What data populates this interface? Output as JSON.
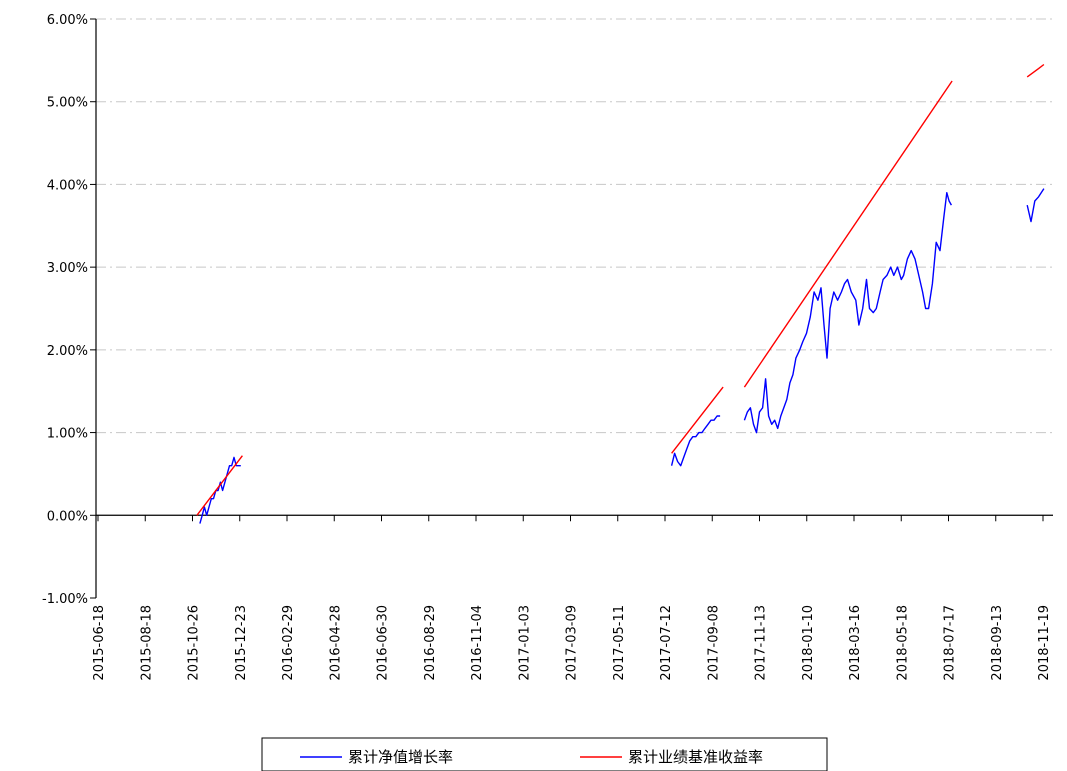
{
  "chart_data": {
    "type": "line",
    "y_axis": {
      "min": -0.01,
      "max": 0.06,
      "ticks": [
        {
          "value": 0.06,
          "label": "6.00%"
        },
        {
          "value": 0.05,
          "label": "5.00%"
        },
        {
          "value": 0.04,
          "label": "4.00%"
        },
        {
          "value": 0.03,
          "label": "3.00%"
        },
        {
          "value": 0.02,
          "label": "2.00%"
        },
        {
          "value": 0.01,
          "label": "1.00%"
        },
        {
          "value": 0.0,
          "label": "0.00%"
        },
        {
          "value": -0.01,
          "label": "-1.00%"
        }
      ],
      "gridlines": "dash-dot"
    },
    "x_axis": {
      "min": "2015-06-18",
      "max": "2018-12-01",
      "tick_labels": [
        "2015-06-18",
        "2015-08-18",
        "2015-10-26",
        "2015-12-23",
        "2016-02-29",
        "2016-04-28",
        "2016-06-30",
        "2016-08-29",
        "2016-11-04",
        "2017-01-03",
        "2017-03-09",
        "2017-05-11",
        "2017-07-12",
        "2017-09-08",
        "2017-11-13",
        "2018-01-10",
        "2018-03-16",
        "2018-05-18",
        "2018-07-17",
        "2018-09-13",
        "2018-11-19"
      ],
      "label_orientation": "vertical"
    },
    "legend": {
      "position": "bottom-center"
    },
    "series": [
      {
        "name": "累计净值增长率",
        "color": "#0000ff",
        "segments": [
          [
            [
              "2015-11-02",
              -0.001
            ],
            [
              "2015-11-05",
              0.0
            ],
            [
              "2015-11-08",
              0.001
            ],
            [
              "2015-11-11",
              0.0
            ],
            [
              "2015-11-14",
              0.001
            ],
            [
              "2015-11-17",
              0.002
            ],
            [
              "2015-11-20",
              0.002
            ],
            [
              "2015-11-23",
              0.003
            ],
            [
              "2015-11-26",
              0.003
            ],
            [
              "2015-11-29",
              0.004
            ],
            [
              "2015-12-02",
              0.003
            ],
            [
              "2015-12-05",
              0.004
            ],
            [
              "2015-12-08",
              0.005
            ],
            [
              "2015-12-11",
              0.006
            ],
            [
              "2015-12-14",
              0.006
            ],
            [
              "2015-12-17",
              0.007
            ],
            [
              "2015-12-20",
              0.006
            ],
            [
              "2015-12-23",
              0.006
            ],
            [
              "2015-12-26",
              0.006
            ]
          ],
          [
            [
              "2017-07-16",
              0.006
            ],
            [
              "2017-07-20",
              0.0075
            ],
            [
              "2017-07-24",
              0.0065
            ],
            [
              "2017-07-28",
              0.006
            ],
            [
              "2017-08-01",
              0.007
            ],
            [
              "2017-08-05",
              0.008
            ],
            [
              "2017-08-09",
              0.009
            ],
            [
              "2017-08-13",
              0.0095
            ],
            [
              "2017-08-17",
              0.0095
            ],
            [
              "2017-08-21",
              0.01
            ],
            [
              "2017-08-25",
              0.01
            ],
            [
              "2017-08-29",
              0.0105
            ],
            [
              "2017-09-02",
              0.011
            ],
            [
              "2017-09-06",
              0.0115
            ],
            [
              "2017-09-10",
              0.0115
            ],
            [
              "2017-09-14",
              0.012
            ],
            [
              "2017-09-18",
              0.012
            ]
          ],
          [
            [
              "2017-10-20",
              0.0115
            ],
            [
              "2017-10-24",
              0.0125
            ],
            [
              "2017-10-28",
              0.013
            ],
            [
              "2017-11-01",
              0.011
            ],
            [
              "2017-11-05",
              0.01
            ],
            [
              "2017-11-09",
              0.0125
            ],
            [
              "2017-11-13",
              0.013
            ],
            [
              "2017-11-17",
              0.0165
            ],
            [
              "2017-11-21",
              0.012
            ],
            [
              "2017-11-25",
              0.011
            ],
            [
              "2017-11-29",
              0.0115
            ],
            [
              "2017-12-03",
              0.0105
            ],
            [
              "2017-12-07",
              0.012
            ],
            [
              "2017-12-11",
              0.013
            ],
            [
              "2017-12-15",
              0.014
            ],
            [
              "2017-12-19",
              0.016
            ],
            [
              "2017-12-23",
              0.017
            ],
            [
              "2017-12-27",
              0.019
            ],
            [
              "2018-01-01",
              0.02
            ],
            [
              "2018-01-05",
              0.021
            ],
            [
              "2018-01-10",
              0.022
            ],
            [
              "2018-01-15",
              0.024
            ],
            [
              "2018-01-20",
              0.027
            ],
            [
              "2018-01-25",
              0.026
            ],
            [
              "2018-01-29",
              0.0275
            ],
            [
              "2018-02-02",
              0.023
            ],
            [
              "2018-02-06",
              0.019
            ],
            [
              "2018-02-10",
              0.025
            ],
            [
              "2018-02-15",
              0.027
            ],
            [
              "2018-02-20",
              0.026
            ],
            [
              "2018-02-25",
              0.027
            ],
            [
              "2018-03-01",
              0.028
            ],
            [
              "2018-03-05",
              0.0285
            ],
            [
              "2018-03-10",
              0.027
            ],
            [
              "2018-03-16",
              0.026
            ],
            [
              "2018-03-20",
              0.023
            ],
            [
              "2018-03-25",
              0.025
            ],
            [
              "2018-03-30",
              0.0285
            ],
            [
              "2018-04-03",
              0.025
            ],
            [
              "2018-04-08",
              0.0245
            ],
            [
              "2018-04-12",
              0.025
            ],
            [
              "2018-04-17",
              0.027
            ],
            [
              "2018-04-21",
              0.0285
            ],
            [
              "2018-04-26",
              0.029
            ],
            [
              "2018-05-01",
              0.03
            ],
            [
              "2018-05-05",
              0.029
            ],
            [
              "2018-05-10",
              0.03
            ],
            [
              "2018-05-15",
              0.0285
            ],
            [
              "2018-05-18",
              0.029
            ],
            [
              "2018-05-23",
              0.031
            ],
            [
              "2018-05-28",
              0.032
            ],
            [
              "2018-06-02",
              0.031
            ],
            [
              "2018-06-07",
              0.029
            ],
            [
              "2018-06-12",
              0.027
            ],
            [
              "2018-06-16",
              0.025
            ],
            [
              "2018-06-20",
              0.025
            ],
            [
              "2018-06-25",
              0.028
            ],
            [
              "2018-06-30",
              0.033
            ],
            [
              "2018-07-05",
              0.032
            ],
            [
              "2018-07-10",
              0.036
            ],
            [
              "2018-07-14",
              0.039
            ],
            [
              "2018-07-17",
              0.038
            ],
            [
              "2018-07-20",
              0.0375
            ]
          ],
          [
            [
              "2018-10-28",
              0.0375
            ],
            [
              "2018-11-02",
              0.0355
            ],
            [
              "2018-11-07",
              0.038
            ],
            [
              "2018-11-12",
              0.0385
            ],
            [
              "2018-11-19",
              0.0395
            ]
          ]
        ]
      },
      {
        "name": "累计业绩基准收益率",
        "color": "#ff0000",
        "segments": [
          [
            [
              "2015-10-29",
              0.0
            ],
            [
              "2015-12-28",
              0.0072
            ]
          ],
          [
            [
              "2017-07-16",
              0.0075
            ],
            [
              "2017-09-22",
              0.0155
            ]
          ],
          [
            [
              "2017-10-20",
              0.0155
            ],
            [
              "2018-07-21",
              0.0525
            ]
          ],
          [
            [
              "2018-10-28",
              0.053
            ],
            [
              "2018-11-12",
              0.054
            ],
            [
              "2018-11-19",
              0.0545
            ]
          ]
        ]
      }
    ]
  }
}
